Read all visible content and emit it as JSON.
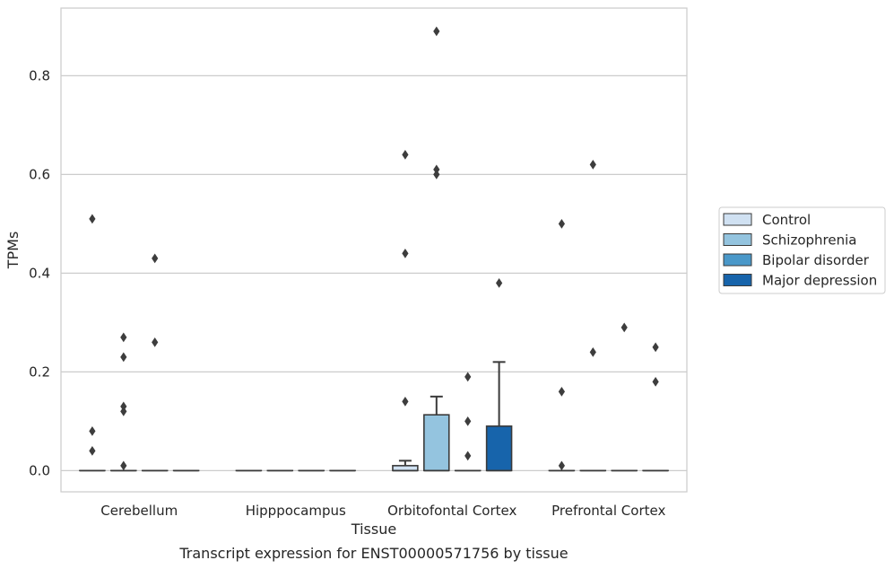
{
  "chart_data": {
    "type": "box",
    "caption": "Transcript expression for ENST00000571756 by tissue",
    "xlabel": "Tissue",
    "ylabel": "TPMs",
    "ylim": [
      -0.043,
      0.937
    ],
    "yticks": [
      "0.0",
      "0.2",
      "0.4",
      "0.6",
      "0.8"
    ],
    "ytick_values": [
      0.0,
      0.2,
      0.4,
      0.6,
      0.8
    ],
    "grid": "horizontal",
    "categories": [
      "Cerebellum",
      "Hipppocampus",
      "Orbitofontal Cortex",
      "Prefrontal Cortex"
    ],
    "legend_position": "center-right",
    "colors": {
      "grid": "#cccccc",
      "frame": "#cccccc",
      "box_edge": "#3a3a3a"
    },
    "series": [
      {
        "name": "Control",
        "color": "#d0e1f2",
        "boxes": [
          {
            "q1": 0,
            "median": 0,
            "q3": 0,
            "whisker_low": 0,
            "whisker_high": 0,
            "outliers": [
              0.51,
              0.08,
              0.04
            ]
          },
          {
            "q1": 0,
            "median": 0,
            "q3": 0,
            "whisker_low": 0,
            "whisker_high": 0,
            "outliers": []
          },
          {
            "q1": 0,
            "median": 0,
            "q3": 0.01,
            "whisker_low": 0,
            "whisker_high": 0.02,
            "outliers": [
              0.64,
              0.44,
              0.14
            ]
          },
          {
            "q1": 0,
            "median": 0,
            "q3": 0,
            "whisker_low": 0,
            "whisker_high": 0,
            "outliers": [
              0.5,
              0.16,
              0.01
            ]
          }
        ]
      },
      {
        "name": "Schizophrenia",
        "color": "#94c4df",
        "boxes": [
          {
            "q1": 0,
            "median": 0,
            "q3": 0,
            "whisker_low": 0,
            "whisker_high": 0,
            "outliers": [
              0.27,
              0.23,
              0.13,
              0.12,
              0.01
            ]
          },
          {
            "q1": 0,
            "median": 0,
            "q3": 0,
            "whisker_low": 0,
            "whisker_high": 0,
            "outliers": []
          },
          {
            "q1": 0,
            "median": 0,
            "q3": 0.113,
            "whisker_low": 0,
            "whisker_high": 0.15,
            "outliers": [
              0.89,
              0.61,
              0.6
            ]
          },
          {
            "q1": 0,
            "median": 0,
            "q3": 0,
            "whisker_low": 0,
            "whisker_high": 0,
            "outliers": [
              0.62,
              0.24
            ]
          }
        ]
      },
      {
        "name": "Bipolar disorder",
        "color": "#4a98c9",
        "boxes": [
          {
            "q1": 0,
            "median": 0,
            "q3": 0,
            "whisker_low": 0,
            "whisker_high": 0,
            "outliers": [
              0.43,
              0.26
            ]
          },
          {
            "q1": 0,
            "median": 0,
            "q3": 0,
            "whisker_low": 0,
            "whisker_high": 0,
            "outliers": []
          },
          {
            "q1": 0,
            "median": 0,
            "q3": 0,
            "whisker_low": 0,
            "whisker_high": 0,
            "outliers": [
              0.19,
              0.1,
              0.03
            ]
          },
          {
            "q1": 0,
            "median": 0,
            "q3": 0,
            "whisker_low": 0,
            "whisker_high": 0,
            "outliers": [
              0.29
            ]
          }
        ]
      },
      {
        "name": "Major depression",
        "color": "#1764ab",
        "boxes": [
          {
            "q1": 0,
            "median": 0,
            "q3": 0,
            "whisker_low": 0,
            "whisker_high": 0,
            "outliers": []
          },
          {
            "q1": 0,
            "median": 0,
            "q3": 0,
            "whisker_low": 0,
            "whisker_high": 0,
            "outliers": []
          },
          {
            "q1": 0,
            "median": 0,
            "q3": 0.09,
            "whisker_low": 0,
            "whisker_high": 0.22,
            "outliers": [
              0.38
            ]
          },
          {
            "q1": 0,
            "median": 0,
            "q3": 0,
            "whisker_low": 0,
            "whisker_high": 0,
            "outliers": [
              0.25,
              0.18
            ]
          }
        ]
      }
    ]
  }
}
